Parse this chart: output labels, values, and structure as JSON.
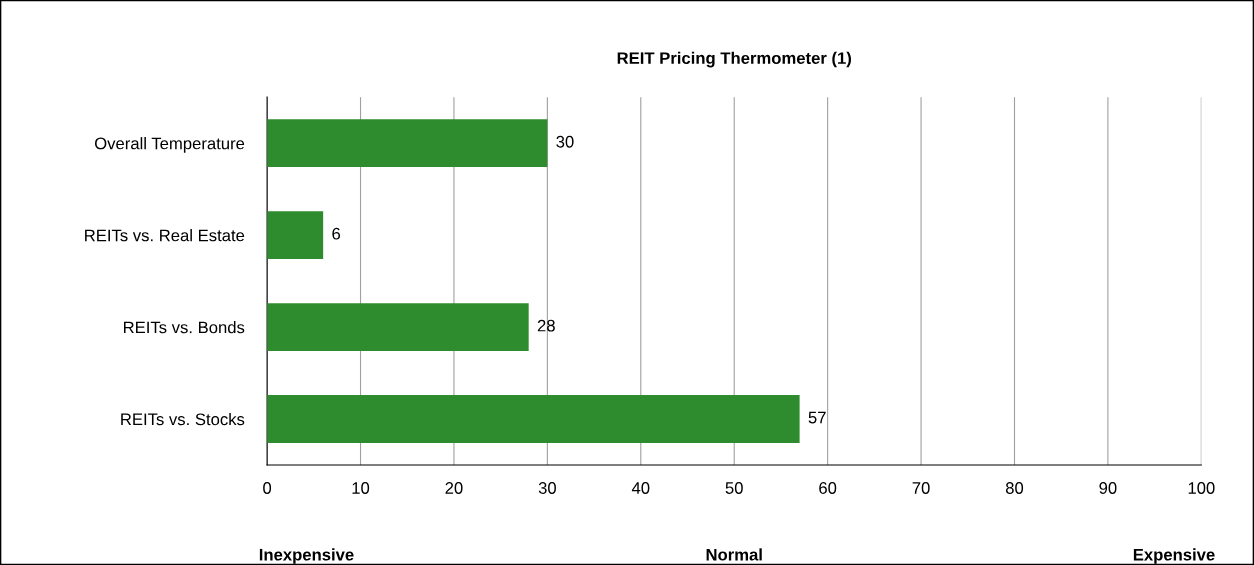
{
  "chart_data": {
    "type": "bar",
    "orientation": "horizontal",
    "title": "REIT Pricing Thermometer (1)",
    "categories": [
      "Overall Temperature",
      "REITs vs. Real Estate",
      "REITs vs. Bonds",
      "REITs vs. Stocks"
    ],
    "values": [
      30,
      6,
      28,
      57
    ],
    "color": "#2e8b2e",
    "data_labels": true,
    "xlim": [
      0,
      100
    ],
    "xticks": [
      0,
      10,
      20,
      30,
      40,
      50,
      60,
      70,
      80,
      90,
      100
    ],
    "grid": "x",
    "annotations": [
      "Inexpensive",
      "Normal",
      "Expensive"
    ]
  }
}
